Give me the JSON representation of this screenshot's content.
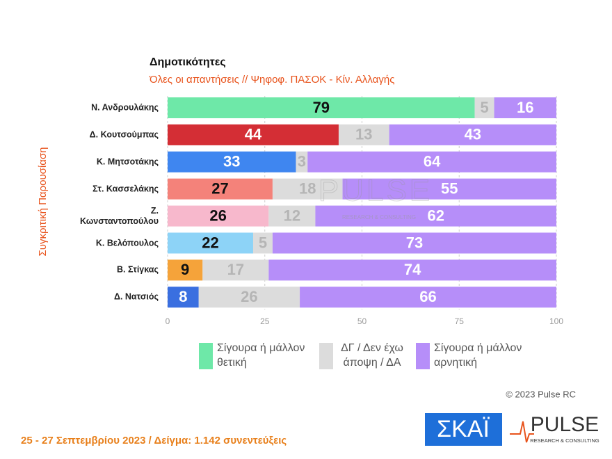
{
  "chart_data": {
    "type": "stacked_barh",
    "title": "Δημοτικότητες",
    "subtitle": "Όλες οι απαντήσεις // Ψηφοφ. ΠΑΣΟΚ - Κίν. Αλλαγής",
    "y_label": "Συγκριτική Παρουσίαση",
    "categories": [
      "Ν. Ανδρουλάκης",
      "Δ. Κουτσούμπας",
      "Κ. Μητσοτάκης",
      "Στ. Κασσελάκης",
      "Ζ. Κωνσταντοπούλου",
      "Κ. Βελόπουλος",
      "Β. Στίγκας",
      "Δ. Νατσιός"
    ],
    "series": [
      {
        "name": "Σίγουρα ή μάλλον θετική",
        "color": "#6ee8a8",
        "colors": [
          "#6ee8a8",
          "#d42e35",
          "#3f86f0",
          "#f4827a",
          "#f7b8cc",
          "#8dd3f7",
          "#f5a33a",
          "#3a6fe0"
        ],
        "label_colors": [
          "#111111",
          "#ffffff",
          "#ffffff",
          "#111111",
          "#111111",
          "#111111",
          "#111111",
          "#ffffff"
        ],
        "values": [
          79,
          44,
          33,
          27,
          26,
          22,
          9,
          8
        ]
      },
      {
        "name": "ΔΓ / Δεν έχω άποψη / ΔΑ",
        "color": "#dcdcdc",
        "label_color": "#b5b5b5",
        "values": [
          5,
          13,
          3,
          18,
          12,
          5,
          17,
          26
        ]
      },
      {
        "name": "Σίγουρα ή μάλλον αρνητική",
        "color": "#b68ef9",
        "label_color": "#ffffff",
        "values": [
          16,
          43,
          64,
          55,
          62,
          73,
          74,
          66
        ]
      }
    ],
    "xlim": [
      0,
      100
    ],
    "xticks": [
      0,
      25,
      50,
      75,
      100
    ],
    "grid": true,
    "watermark": [
      "PULSE",
      "RESEARCH & CONSULTING"
    ],
    "copyright": "© 2023 Pulse RC",
    "footer": "25 - 27 Σεπτεμβρίου 2023 / Δείγμα: 1.142 συνεντεύξεις",
    "logos": [
      "ΣΚΑΪ",
      "PULSE",
      "RESEARCH & CONSULTING"
    ]
  }
}
